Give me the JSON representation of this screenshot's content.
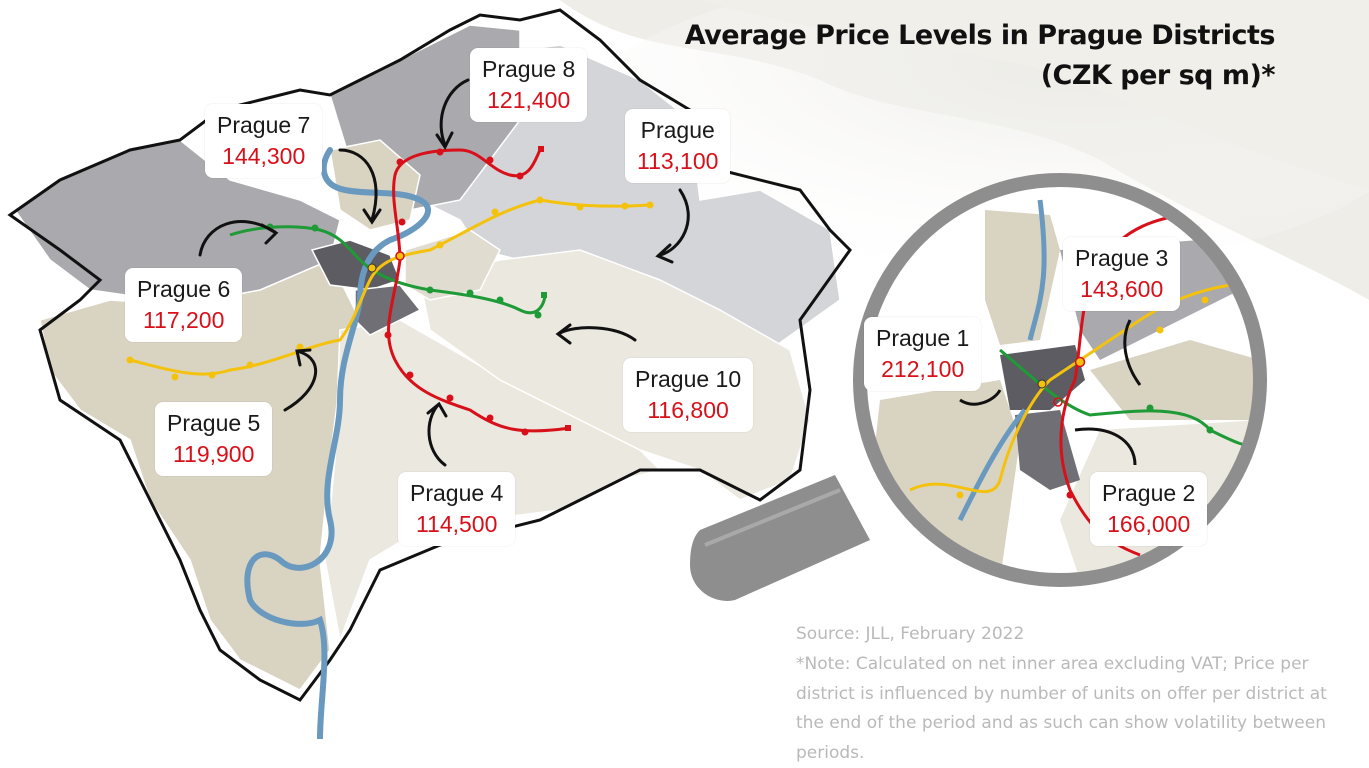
{
  "header": {
    "title_line1": "Average Price Levels in Prague Districts",
    "title_line2": "(CZK per sq m)*"
  },
  "districts": [
    {
      "key": "prague8",
      "name": "Prague 8",
      "value": "121,400"
    },
    {
      "key": "prague7",
      "name": "Prague 7",
      "value": "144,300"
    },
    {
      "key": "prague9",
      "name": "Prague",
      "value": "113,100"
    },
    {
      "key": "prague6",
      "name": "Prague 6",
      "value": "117,200"
    },
    {
      "key": "prague5",
      "name": "Prague 5",
      "value": "119,900"
    },
    {
      "key": "prague10",
      "name": "Prague 10",
      "value": "116,800"
    },
    {
      "key": "prague4",
      "name": "Prague 4",
      "value": "114,500"
    },
    {
      "key": "prague3",
      "name": "Prague 3",
      "value": "143,600"
    },
    {
      "key": "prague1",
      "name": "Prague 1",
      "value": "212,100"
    },
    {
      "key": "prague2",
      "name": "Prague 2",
      "value": "166,000"
    }
  ],
  "footer": {
    "source": "Source: JLL, February 2022",
    "note": "*Note: Calculated on net inner area excluding VAT; Price per district is influenced by number of units on offer per district at the end of the period and as such can show volatility between periods."
  },
  "colors": {
    "metro_a": "#1e9a36",
    "metro_b": "#f4c20d",
    "metro_c": "#d8101a",
    "river": "#6a99bf",
    "value_text": "#d8101a",
    "district_dark": "#5c5c62",
    "district_mid": "#a9a9ae",
    "district_light": "#d4d5d8",
    "district_beige": "#d9d3c2",
    "district_cream": "#ebe8df",
    "magnifier": "#8e8e8e"
  },
  "icons": [
    "metro-line-green",
    "metro-line-yellow",
    "metro-line-red",
    "river-vltava",
    "magnifier-icon",
    "pointer-arrow-icon"
  ]
}
